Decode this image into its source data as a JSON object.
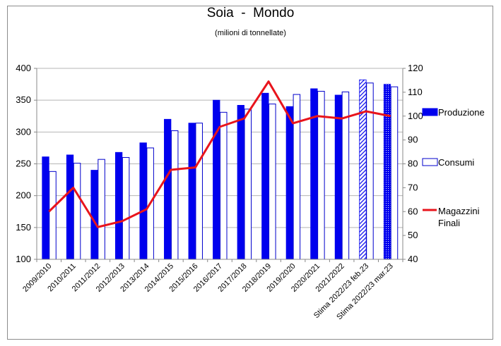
{
  "chart_data": {
    "type": "bar",
    "title": "Soia  -  Mondo",
    "subtitle": "(milioni di tonnellate)",
    "categories": [
      "2009/2010",
      "2010/2011",
      "2011/2012",
      "2012/2013",
      "2013/2014",
      "2014/2015",
      "2015/2016",
      "2016/2017",
      "2017/2018",
      "2018/2019",
      "2019/2020",
      "2020/2021",
      "2021/2022",
      "Stima 2022/23 feb.23",
      "Stima 2022/23 mar.23"
    ],
    "series": [
      {
        "name": "Produzione",
        "axis": "left",
        "style": "filled-bar",
        "values": [
          261,
          264,
          240,
          268,
          283,
          320,
          314,
          350,
          342,
          361,
          340,
          368,
          358,
          382,
          375
        ]
      },
      {
        "name": "Consumi",
        "axis": "left",
        "style": "outline-bar",
        "values": [
          238,
          251,
          257,
          260,
          275,
          302,
          314,
          331,
          336,
          344,
          359,
          364,
          363,
          377,
          371
        ]
      },
      {
        "name": "Magazzini\nFinali",
        "axis": "right",
        "style": "line",
        "values": [
          60,
          70,
          53.5,
          56,
          61,
          77.5,
          78.5,
          95.5,
          99,
          114.5,
          97,
          100,
          99,
          102,
          100
        ]
      }
    ],
    "left_axis": {
      "min": 100,
      "max": 400,
      "ticks": [
        100,
        150,
        200,
        250,
        300,
        350,
        400
      ]
    },
    "right_axis": {
      "min": 40,
      "max": 120,
      "ticks": [
        40,
        50,
        60,
        70,
        80,
        90,
        100,
        110,
        120
      ]
    },
    "hatched_categories": [
      "Stima 2022/23 feb.23"
    ],
    "dotted_categories": [
      "Stima 2022/23 mar.23"
    ],
    "grid": "horizontal",
    "legend_position": "right",
    "colors": {
      "production": "#0000ee",
      "consumption_border": "#0000cc",
      "stocks_line": "#e8141c",
      "grid": "#b5b5b5"
    }
  }
}
